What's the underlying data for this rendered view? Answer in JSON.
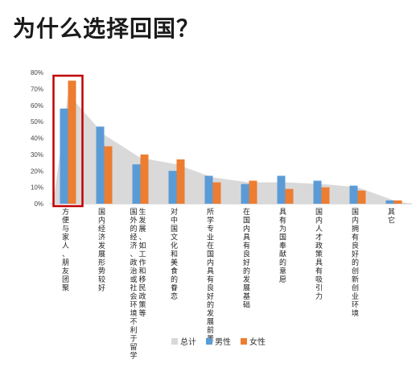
{
  "title": "为什么选择回国？",
  "colors": {
    "total": "#d9d9d9",
    "male": "#5b9bd5",
    "female": "#ed7d31",
    "highlight": "#c00000"
  },
  "chart_data": {
    "type": "bar",
    "categories": [
      "方便与家人、朋友团聚",
      "国内经济发展形势较好",
      "国外的经济、政治或社会环境不利于留学生发展、如工作和移民政策等",
      "对中国文化和美食的眷恋",
      "所学专业在国内具有良好的发展前景",
      "在国内具有良好的发展基础",
      "具有为国奉献的意愿",
      "国内人才政策具有吸引力",
      "国内拥有良好的创新创业环境",
      "其它"
    ],
    "series": [
      {
        "name": "总计",
        "type": "area",
        "values": [
          67,
          42,
          28,
          24,
          16,
          13,
          13,
          12,
          10,
          2
        ]
      },
      {
        "name": "男性",
        "type": "bar",
        "values": [
          58,
          47,
          24,
          20,
          17,
          12,
          17,
          14,
          11,
          2
        ]
      },
      {
        "name": "女性",
        "type": "bar",
        "values": [
          75,
          35,
          30,
          27,
          13,
          14,
          9,
          10,
          8,
          2
        ]
      }
    ],
    "yticks": [
      "0%",
      "10%",
      "20%",
      "30%",
      "40%",
      "50%",
      "60%",
      "70%",
      "80%"
    ],
    "ylim": [
      0,
      80
    ],
    "highlight_category": 0,
    "legend_position": "bottom"
  }
}
